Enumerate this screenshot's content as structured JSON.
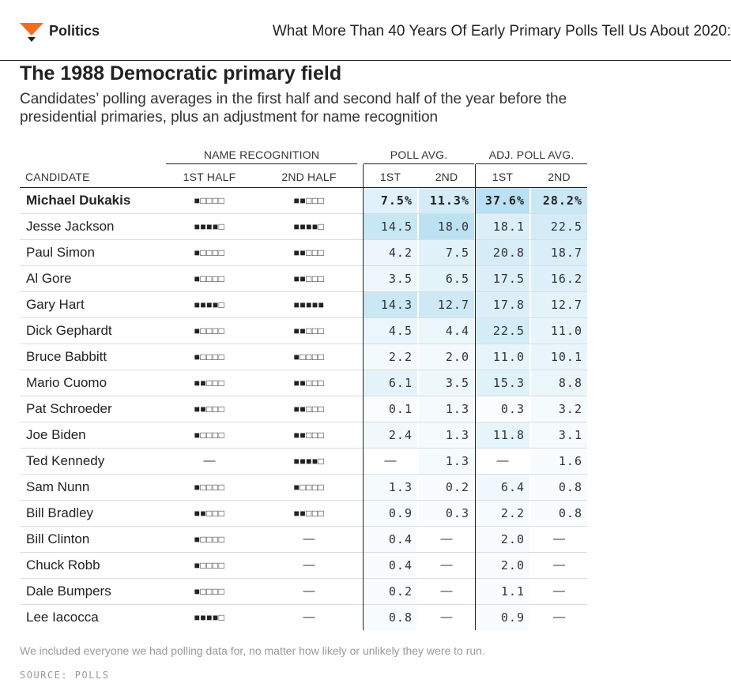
{
  "header": {
    "section": "Politics",
    "article_title": "What More Than 40 Years Of Early Primary Polls Tell Us About 2020:",
    "logo_icon": "chevron-logo-icon",
    "brand_color": "#f76b1c"
  },
  "title": "The 1988 Democratic primary field",
  "subtitle": "Candidates’ polling averages in the first half and second half of the year before the presidential primaries, plus an adjustment for name recognition",
  "table": {
    "groups": {
      "name_recognition": "NAME RECOGNITION",
      "poll_avg": "POLL AVG.",
      "adj_poll_avg": "ADJ. POLL AVG."
    },
    "columns": {
      "candidate": "CANDIDATE",
      "nr_first": "1ST HALF",
      "nr_second": "2ND HALF",
      "poll_first": "1ST",
      "poll_second": "2ND",
      "adj_first": "1ST",
      "adj_second": "2ND"
    },
    "heat_color": "#5bb6e2",
    "rows": [
      {
        "name": "Michael Dukakis",
        "nr1": "■□□□□",
        "nr2": "■■□□□",
        "p1": "7.5%",
        "p2": "11.3%",
        "a1": "37.6%",
        "a2": "28.2%",
        "p1v": 7.5,
        "p2v": 11.3,
        "a1v": 37.6,
        "a2v": 28.2,
        "highlight": true
      },
      {
        "name": "Jesse Jackson",
        "nr1": "■■■■□",
        "nr2": "■■■■□",
        "p1": "14.5",
        "p2": "18.0",
        "a1": "18.1",
        "a2": "22.5",
        "p1v": 14.5,
        "p2v": 18.0,
        "a1v": 18.1,
        "a2v": 22.5
      },
      {
        "name": "Paul Simon",
        "nr1": "■□□□□",
        "nr2": "■■□□□",
        "p1": "4.2",
        "p2": "7.5",
        "a1": "20.8",
        "a2": "18.7",
        "p1v": 4.2,
        "p2v": 7.5,
        "a1v": 20.8,
        "a2v": 18.7
      },
      {
        "name": "Al Gore",
        "nr1": "■□□□□",
        "nr2": "■■□□□",
        "p1": "3.5",
        "p2": "6.5",
        "a1": "17.5",
        "a2": "16.2",
        "p1v": 3.5,
        "p2v": 6.5,
        "a1v": 17.5,
        "a2v": 16.2
      },
      {
        "name": "Gary Hart",
        "nr1": "■■■■□",
        "nr2": "■■■■■",
        "p1": "14.3",
        "p2": "12.7",
        "a1": "17.8",
        "a2": "12.7",
        "p1v": 14.3,
        "p2v": 12.7,
        "a1v": 17.8,
        "a2v": 12.7
      },
      {
        "name": "Dick Gephardt",
        "nr1": "■□□□□",
        "nr2": "■■□□□",
        "p1": "4.5",
        "p2": "4.4",
        "a1": "22.5",
        "a2": "11.0",
        "p1v": 4.5,
        "p2v": 4.4,
        "a1v": 22.5,
        "a2v": 11.0
      },
      {
        "name": "Bruce Babbitt",
        "nr1": "■□□□□",
        "nr2": "■□□□□",
        "p1": "2.2",
        "p2": "2.0",
        "a1": "11.0",
        "a2": "10.1",
        "p1v": 2.2,
        "p2v": 2.0,
        "a1v": 11.0,
        "a2v": 10.1
      },
      {
        "name": "Mario Cuomo",
        "nr1": "■■□□□",
        "nr2": "■■□□□",
        "p1": "6.1",
        "p2": "3.5",
        "a1": "15.3",
        "a2": "8.8",
        "p1v": 6.1,
        "p2v": 3.5,
        "a1v": 15.3,
        "a2v": 8.8
      },
      {
        "name": "Pat Schroeder",
        "nr1": "■■□□□",
        "nr2": "■■□□□",
        "p1": "0.1",
        "p2": "1.3",
        "a1": "0.3",
        "a2": "3.2",
        "p1v": 0.1,
        "p2v": 1.3,
        "a1v": 0.3,
        "a2v": 3.2
      },
      {
        "name": "Joe Biden",
        "nr1": "■□□□□",
        "nr2": "■■□□□",
        "p1": "2.4",
        "p2": "1.3",
        "a1": "11.8",
        "a2": "3.1",
        "p1v": 2.4,
        "p2v": 1.3,
        "a1v": 11.8,
        "a2v": 3.1
      },
      {
        "name": "Ted Kennedy",
        "nr1": "—",
        "nr2": "■■■■□",
        "p1": "—",
        "p2": "1.3",
        "a1": "—",
        "a2": "1.6",
        "p1v": null,
        "p2v": 1.3,
        "a1v": null,
        "a2v": 1.6
      },
      {
        "name": "Sam Nunn",
        "nr1": "■□□□□",
        "nr2": "■□□□□",
        "p1": "1.3",
        "p2": "0.2",
        "a1": "6.4",
        "a2": "0.8",
        "p1v": 1.3,
        "p2v": 0.2,
        "a1v": 6.4,
        "a2v": 0.8
      },
      {
        "name": "Bill Bradley",
        "nr1": "■■□□□",
        "nr2": "■■□□□",
        "p1": "0.9",
        "p2": "0.3",
        "a1": "2.2",
        "a2": "0.8",
        "p1v": 0.9,
        "p2v": 0.3,
        "a1v": 2.2,
        "a2v": 0.8
      },
      {
        "name": "Bill Clinton",
        "nr1": "■□□□□",
        "nr2": "—",
        "p1": "0.4",
        "p2": "—",
        "a1": "2.0",
        "a2": "—",
        "p1v": 0.4,
        "p2v": null,
        "a1v": 2.0,
        "a2v": null
      },
      {
        "name": "Chuck Robb",
        "nr1": "■□□□□",
        "nr2": "—",
        "p1": "0.4",
        "p2": "—",
        "a1": "2.0",
        "a2": "—",
        "p1v": 0.4,
        "p2v": null,
        "a1v": 2.0,
        "a2v": null
      },
      {
        "name": "Dale Bumpers",
        "nr1": "■□□□□",
        "nr2": "—",
        "p1": "0.2",
        "p2": "—",
        "a1": "1.1",
        "a2": "—",
        "p1v": 0.2,
        "p2v": null,
        "a1v": 1.1,
        "a2v": null
      },
      {
        "name": "Lee Iacocca",
        "nr1": "■■■■□",
        "nr2": "—",
        "p1": "0.8",
        "p2": "—",
        "a1": "0.9",
        "a2": "—",
        "p1v": 0.8,
        "p2v": null,
        "a1v": 0.9,
        "a2v": null
      }
    ]
  },
  "footnote": "We included everyone we had polling data for, no matter how likely or unlikely they were to run.",
  "source": "SOURCE: POLLS"
}
